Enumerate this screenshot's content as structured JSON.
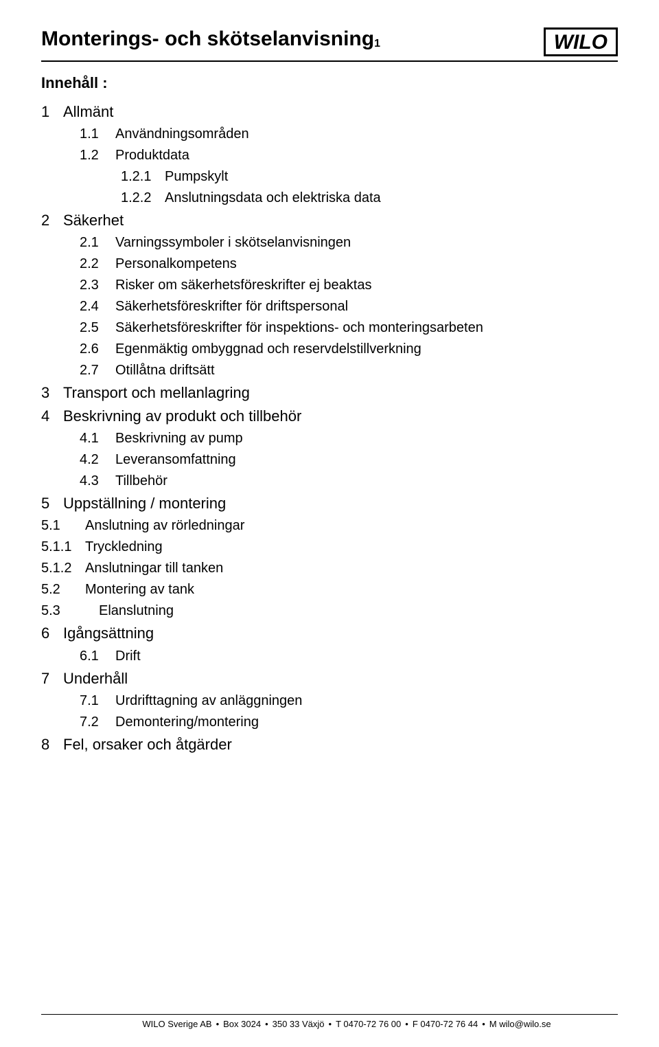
{
  "doc_title_main": "Monterings- och skötselanvisning",
  "doc_title_sub": "1",
  "logo_text": "WILO",
  "toc_heading": "Innehåll :",
  "sections": [
    {
      "num": "1",
      "title": "Allmänt",
      "children": [
        {
          "num": "1.1",
          "title": "Användningsområden"
        },
        {
          "num": "1.2",
          "title": "Produktdata",
          "children": [
            {
              "num": "1.2.1",
              "title": "Pumpskylt"
            },
            {
              "num": "1.2.2",
              "title": "Anslutningsdata och elektriska data"
            }
          ]
        }
      ]
    },
    {
      "num": "2",
      "title": "Säkerhet",
      "children": [
        {
          "num": "2.1",
          "title": "Varningssymboler i skötselanvisningen"
        },
        {
          "num": "2.2",
          "title": "Personalkompetens"
        },
        {
          "num": "2.3",
          "title": "Risker om säkerhetsföreskrifter ej beaktas"
        },
        {
          "num": "2.4",
          "title": "Säkerhetsföreskrifter för driftspersonal"
        },
        {
          "num": "2.5",
          "title": "Säkerhetsföreskrifter för inspektions- och monteringsarbeten"
        },
        {
          "num": "2.6",
          "title": "Egenmäktig ombyggnad och reservdelstillverkning"
        },
        {
          "num": "2.7",
          "title": "Otillåtna driftsätt"
        }
      ]
    },
    {
      "num": "3",
      "title": "Transport och mellanlagring"
    },
    {
      "num": "4",
      "title": "Beskrivning av produkt och tillbehör",
      "children": [
        {
          "num": "4.1",
          "title": "Beskrivning av pump"
        },
        {
          "num": "4.2",
          "title": "Leveransomfattning"
        },
        {
          "num": "4.3",
          "title": "Tillbehör"
        }
      ]
    },
    {
      "num": "5",
      "title": "Uppställning / montering",
      "flat_children": [
        {
          "num": "5.1",
          "title": "Anslutning av rörledningar"
        },
        {
          "num": "5.1.1",
          "title": "Tryckledning"
        },
        {
          "num": "5.1.2",
          "title": "Anslutningar till tanken"
        },
        {
          "num": "5.2",
          "title": "Montering av tank"
        },
        {
          "num": "5.3",
          "title": "Elanslutning",
          "wide_gap": true
        }
      ]
    },
    {
      "num": "6",
      "title": "Igångsättning",
      "children": [
        {
          "num": "6.1",
          "title": "Drift"
        }
      ]
    },
    {
      "num": "7",
      "title": "Underhåll",
      "children": [
        {
          "num": "7.1",
          "title": "Urdrifttagning av anläggningen"
        },
        {
          "num": "7.2",
          "title": "Demontering/montering"
        }
      ]
    },
    {
      "num": "8",
      "title": "Fel, orsaker och åtgärder"
    }
  ],
  "footer": {
    "segments": [
      "WILO Sverige AB",
      "Box 3024",
      "350 33 Växjö",
      "T 0470-72 76 00",
      "F 0470-72 76 44",
      "M wilo@wilo.se"
    ],
    "sep": "•"
  },
  "colors": {
    "text": "#000000",
    "background": "#ffffff",
    "rule": "#000000"
  }
}
